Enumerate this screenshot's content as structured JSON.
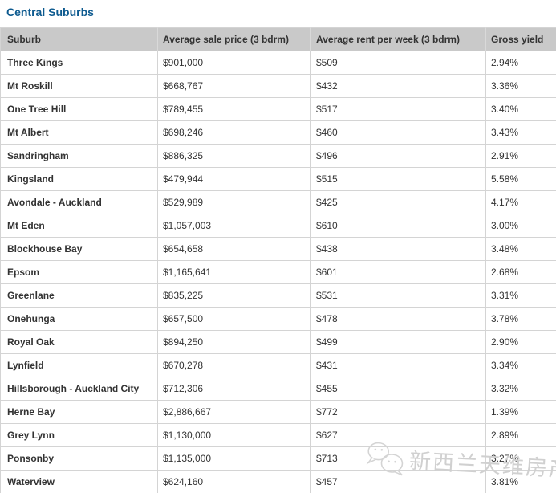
{
  "page_title": "Central Suburbs",
  "colors": {
    "title_text": "#0d5a8f",
    "header_background": "#c9c9c9",
    "table_border": "#d4d4d4",
    "body_text": "#333333",
    "watermark_gray": "#d0d0d0"
  },
  "table": {
    "columns": [
      "Suburb",
      "Average sale price (3 bdrm)",
      "Average rent per week (3 bdrm)",
      "Gross yield"
    ],
    "rows": [
      {
        "suburb": "Three Kings",
        "sale_price": "$901,000",
        "rent_per_week": "$509",
        "gross_yield": "2.94%"
      },
      {
        "suburb": "Mt Roskill",
        "sale_price": "$668,767",
        "rent_per_week": "$432",
        "gross_yield": "3.36%"
      },
      {
        "suburb": "One Tree Hill",
        "sale_price": "$789,455",
        "rent_per_week": "$517",
        "gross_yield": "3.40%"
      },
      {
        "suburb": "Mt Albert",
        "sale_price": "$698,246",
        "rent_per_week": "$460",
        "gross_yield": "3.43%"
      },
      {
        "suburb": "Sandringham",
        "sale_price": "$886,325",
        "rent_per_week": "$496",
        "gross_yield": "2.91%"
      },
      {
        "suburb": "Kingsland",
        "sale_price": "$479,944",
        "rent_per_week": "$515",
        "gross_yield": "5.58%"
      },
      {
        "suburb": "Avondale - Auckland",
        "sale_price": "$529,989",
        "rent_per_week": "$425",
        "gross_yield": "4.17%"
      },
      {
        "suburb": "Mt Eden",
        "sale_price": "$1,057,003",
        "rent_per_week": "$610",
        "gross_yield": "3.00%"
      },
      {
        "suburb": "Blockhouse Bay",
        "sale_price": "$654,658",
        "rent_per_week": "$438",
        "gross_yield": "3.48%"
      },
      {
        "suburb": "Epsom",
        "sale_price": "$1,165,641",
        "rent_per_week": "$601",
        "gross_yield": "2.68%"
      },
      {
        "suburb": "Greenlane",
        "sale_price": "$835,225",
        "rent_per_week": "$531",
        "gross_yield": "3.31%"
      },
      {
        "suburb": "Onehunga",
        "sale_price": "$657,500",
        "rent_per_week": "$478",
        "gross_yield": "3.78%"
      },
      {
        "suburb": "Royal Oak",
        "sale_price": "$894,250",
        "rent_per_week": "$499",
        "gross_yield": "2.90%"
      },
      {
        "suburb": "Lynfield",
        "sale_price": "$670,278",
        "rent_per_week": "$431",
        "gross_yield": "3.34%"
      },
      {
        "suburb": "Hillsborough - Auckland City",
        "sale_price": "$712,306",
        "rent_per_week": "$455",
        "gross_yield": "3.32%"
      },
      {
        "suburb": "Herne Bay",
        "sale_price": "$2,886,667",
        "rent_per_week": "$772",
        "gross_yield": "1.39%"
      },
      {
        "suburb": "Grey Lynn",
        "sale_price": "$1,130,000",
        "rent_per_week": "$627",
        "gross_yield": "2.89%"
      },
      {
        "suburb": "Ponsonby",
        "sale_price": "$1,135,000",
        "rent_per_week": "$713",
        "gross_yield": "3.27%"
      },
      {
        "suburb": "Waterview",
        "sale_price": "$624,160",
        "rent_per_week": "$457",
        "gross_yield": "3.81%"
      }
    ]
  },
  "watermark": {
    "icon": "wechat-icon",
    "text": "新西兰天维房产"
  }
}
